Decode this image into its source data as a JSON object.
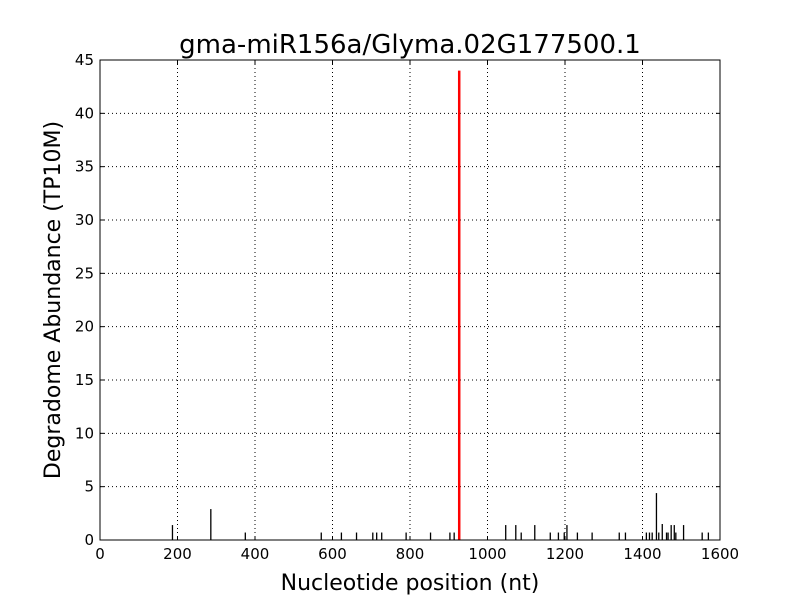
{
  "chart_data": {
    "type": "bar",
    "title": "gma-miR156a/Glyma.02G177500.1",
    "xlabel": "Nucleotide position (nt)",
    "ylabel": "Degradome Abundance (TP10M)",
    "xlim": [
      0,
      1600
    ],
    "ylim": [
      0,
      45
    ],
    "xticks": [
      0,
      200,
      400,
      600,
      800,
      1000,
      1200,
      1400,
      1600
    ],
    "yticks": [
      0,
      5,
      10,
      15,
      20,
      25,
      30,
      35,
      40,
      45
    ],
    "grid": true,
    "bar_color": "#000000",
    "highlight_color": "#ff0000",
    "series": [
      {
        "x": [
          187,
          286,
          375,
          571,
          623,
          662,
          704,
          714,
          727,
          790,
          853,
          903,
          914,
          1047,
          1073,
          1087,
          1122,
          1162,
          1183,
          1198,
          1205,
          1232,
          1270,
          1340,
          1356,
          1410,
          1418,
          1425,
          1436,
          1442,
          1451,
          1462,
          1466,
          1474,
          1482,
          1486,
          1506,
          1554,
          1570
        ],
        "values": [
          1.4,
          2.9,
          0.7,
          0.7,
          0.7,
          0.7,
          0.7,
          0.7,
          0.7,
          0.7,
          0.7,
          0.7,
          0.7,
          1.4,
          1.4,
          0.7,
          1.4,
          0.7,
          0.7,
          0.7,
          1.4,
          0.7,
          0.7,
          0.7,
          0.7,
          0.7,
          0.7,
          0.7,
          4.4,
          0.7,
          1.5,
          0.7,
          0.7,
          1.4,
          1.4,
          0.7,
          1.4,
          0.7,
          0.7
        ]
      },
      {
        "highlight": true,
        "x": [
          927
        ],
        "values": [
          44
        ]
      }
    ]
  }
}
